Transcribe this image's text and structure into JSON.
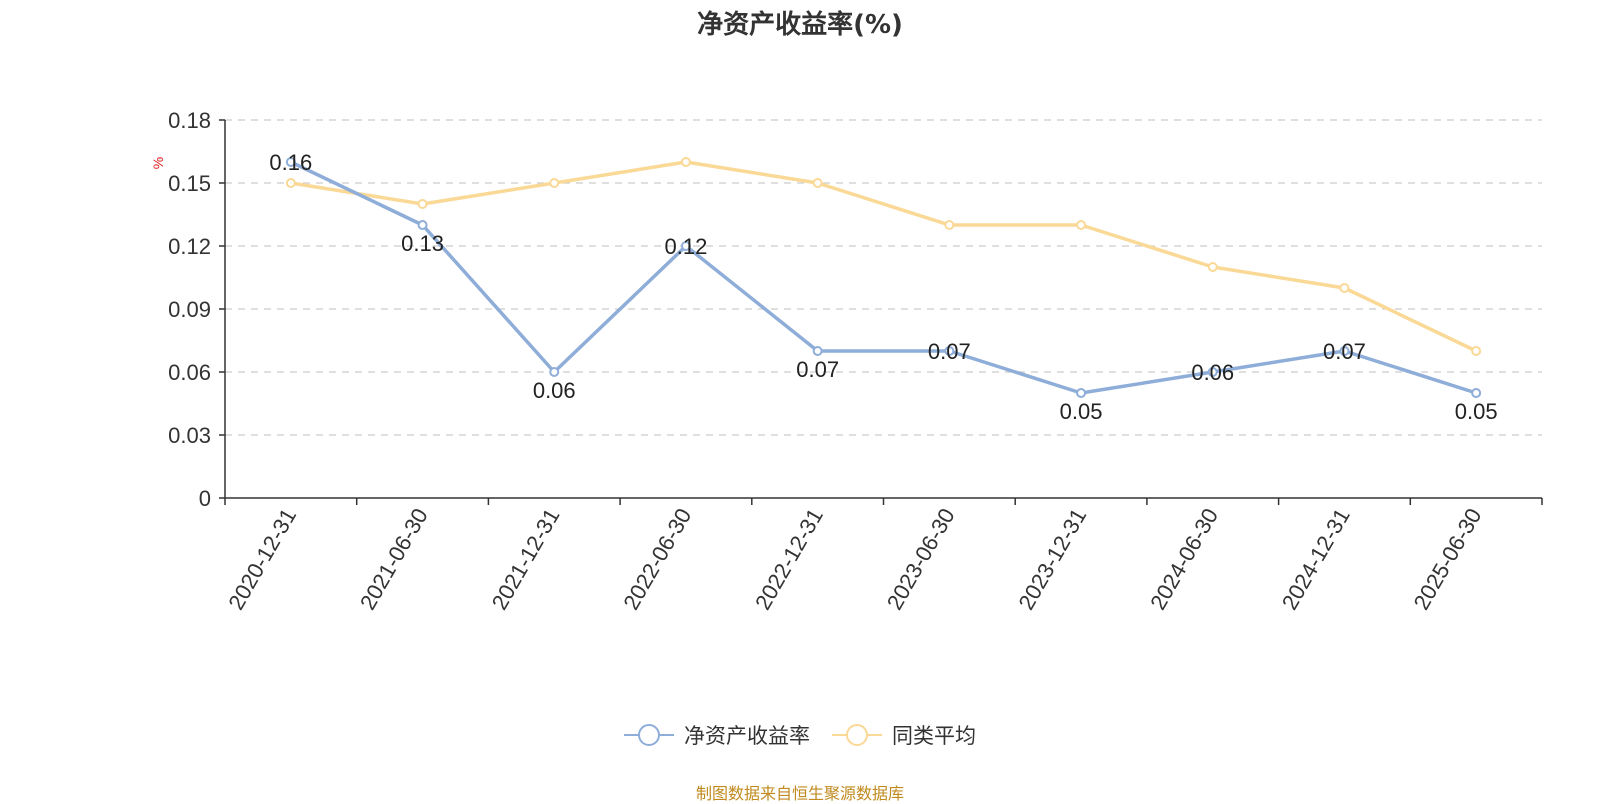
{
  "chart_data": {
    "type": "line",
    "title": "净资产收益率(%)",
    "ylabel": "%",
    "xlabel": "",
    "categories": [
      "2020-12-31",
      "2021-06-30",
      "2021-12-31",
      "2022-06-30",
      "2022-12-31",
      "2023-06-30",
      "2023-12-31",
      "2024-06-30",
      "2024-12-31",
      "2025-06-30"
    ],
    "ylim": [
      0,
      0.18
    ],
    "yticks": [
      "0",
      "0.03",
      "0.06",
      "0.09",
      "0.12",
      "0.15",
      "0.18"
    ],
    "grid": true,
    "legend_position": "bottom",
    "series": [
      {
        "name": "净资产收益率",
        "color": "#8eadd8",
        "values": [
          0.16,
          0.13,
          0.06,
          0.12,
          0.07,
          0.07,
          0.05,
          0.06,
          0.07,
          0.05
        ],
        "data_labels": [
          "0.16",
          "0.13",
          "0.06",
          "0.12",
          "0.07",
          "0.07",
          "0.05",
          "0.06",
          "0.07",
          "0.05"
        ]
      },
      {
        "name": "同类平均",
        "color": "#fad896",
        "values": [
          0.15,
          0.14,
          0.15,
          0.16,
          0.15,
          0.13,
          0.13,
          0.11,
          0.1,
          0.07
        ]
      }
    ]
  },
  "source_note": "制图数据来自恒生聚源数据库"
}
